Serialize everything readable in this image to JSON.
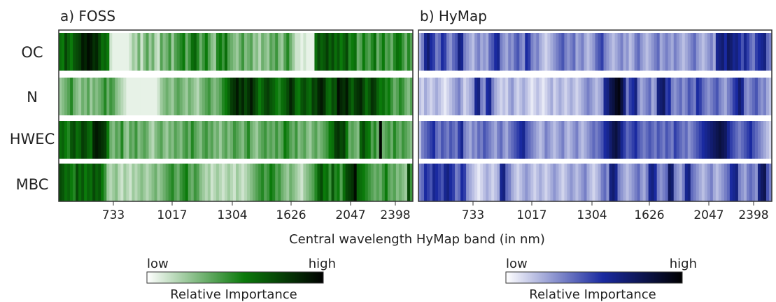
{
  "xlabel": "Central wavelength HyMap band (in nm)",
  "row_labels": [
    "OC",
    "N",
    "HWEC",
    "MBC"
  ],
  "x_ticks": [
    "733",
    "1017",
    "1304",
    "1626",
    "2047",
    "2398"
  ],
  "legend": {
    "low": "low",
    "high": "high",
    "label": "Relative Importance"
  },
  "colors": {
    "foss_high": "#0d4f0d",
    "hymap_high": "#0a0a3a",
    "low": "#ffffff",
    "frame": "#333333"
  },
  "chart_data": [
    {
      "type": "heatmap",
      "title": "a) FOSS",
      "rows": [
        "OC",
        "N",
        "HWEC",
        "MBC"
      ],
      "x_ticks": [
        "733",
        "1017",
        "1304",
        "1626",
        "2047",
        "2398"
      ],
      "xlabel": "Central wavelength HyMap band (in nm)",
      "colorscale": [
        "#ffffff",
        "#0b7a0b",
        "#000000"
      ],
      "n_bands": 126,
      "values": [
        [
          0.55,
          0.5,
          0.72,
          0.6,
          0.5,
          0.65,
          0.7,
          0.75,
          0.9,
          0.85,
          0.95,
          0.9,
          0.8,
          0.85,
          0.7,
          0.55,
          0.6,
          0.5,
          0.1,
          0.05,
          0.05,
          0.05,
          0.05,
          0.05,
          0.05,
          0.1,
          0.2,
          0.15,
          0.3,
          0.1,
          0.25,
          0.35,
          0.2,
          0.3,
          0.15,
          0.1,
          0.35,
          0.25,
          0.3,
          0.4,
          0.2,
          0.35,
          0.4,
          0.45,
          0.5,
          0.3,
          0.4,
          0.55,
          0.6,
          0.45,
          0.3,
          0.4,
          0.5,
          0.35,
          0.25,
          0.2,
          0.45,
          0.5,
          0.4,
          0.55,
          0.35,
          0.3,
          0.25,
          0.2,
          0.3,
          0.4,
          0.25,
          0.3,
          0.35,
          0.2,
          0.25,
          0.15,
          0.3,
          0.25,
          0.2,
          0.35,
          0.3,
          0.4,
          0.25,
          0.2,
          0.35,
          0.45,
          0.3,
          0.2,
          0.1,
          0.1,
          0.05,
          0.1,
          0.05,
          0.05,
          0.05,
          0.55,
          0.7,
          0.6,
          0.65,
          0.75,
          0.6,
          0.7,
          0.55,
          0.65,
          0.5,
          0.6,
          0.7,
          0.45,
          0.5,
          0.55,
          0.3,
          0.35,
          0.5,
          0.4,
          0.35,
          0.45,
          0.55,
          0.3,
          0.4,
          0.5,
          0.35,
          0.4,
          0.3,
          0.45,
          0.55,
          0.5,
          0.4,
          0.3,
          0.45,
          0.35
        ],
        [
          0.2,
          0.25,
          0.3,
          0.35,
          0.45,
          0.3,
          0.25,
          0.2,
          0.3,
          0.25,
          0.35,
          0.2,
          0.3,
          0.25,
          0.3,
          0.35,
          0.45,
          0.3,
          0.4,
          0.35,
          0.25,
          0.2,
          0.15,
          0.1,
          0.05,
          0.05,
          0.05,
          0.05,
          0.05,
          0.05,
          0.05,
          0.05,
          0.05,
          0.05,
          0.05,
          0.1,
          0.2,
          0.25,
          0.3,
          0.25,
          0.2,
          0.3,
          0.35,
          0.3,
          0.25,
          0.2,
          0.3,
          0.25,
          0.2,
          0.15,
          0.25,
          0.3,
          0.35,
          0.4,
          0.3,
          0.25,
          0.3,
          0.35,
          0.45,
          0.5,
          0.6,
          0.75,
          0.8,
          0.9,
          0.75,
          0.85,
          0.7,
          0.8,
          0.9,
          0.75,
          0.65,
          0.5,
          0.6,
          0.7,
          0.75,
          0.65,
          0.6,
          0.5,
          0.45,
          0.55,
          0.6,
          0.7,
          0.85,
          0.75,
          0.55,
          0.5,
          0.65,
          0.7,
          0.6,
          0.55,
          0.75,
          0.7,
          0.85,
          0.9,
          0.8,
          0.6,
          0.55,
          0.7,
          0.65,
          0.95,
          0.85,
          0.8,
          0.9,
          0.7,
          0.6,
          0.75,
          0.8,
          0.85,
          0.7,
          0.55,
          0.65,
          0.8,
          0.75,
          0.6,
          0.5,
          0.55,
          0.45,
          0.5,
          0.4,
          0.3,
          0.35,
          0.45,
          0.4,
          0.3,
          0.25,
          0.35
        ],
        [
          0.55,
          0.6,
          0.5,
          0.45,
          0.65,
          0.7,
          0.55,
          0.6,
          0.75,
          0.7,
          0.6,
          0.55,
          0.85,
          0.9,
          0.85,
          0.8,
          0.75,
          0.5,
          0.3,
          0.25,
          0.35,
          0.3,
          0.45,
          0.25,
          0.2,
          0.35,
          0.3,
          0.4,
          0.25,
          0.3,
          0.35,
          0.3,
          0.2,
          0.15,
          0.25,
          0.3,
          0.35,
          0.25,
          0.2,
          0.3,
          0.25,
          0.35,
          0.3,
          0.25,
          0.35,
          0.4,
          0.3,
          0.45,
          0.35,
          0.3,
          0.25,
          0.35,
          0.4,
          0.3,
          0.35,
          0.25,
          0.3,
          0.2,
          0.3,
          0.35,
          0.25,
          0.3,
          0.4,
          0.35,
          0.3,
          0.25,
          0.35,
          0.45,
          0.3,
          0.25,
          0.2,
          0.3,
          0.35,
          0.4,
          0.3,
          0.35,
          0.3,
          0.4,
          0.3,
          0.35,
          0.5,
          0.45,
          0.35,
          0.3,
          0.4,
          0.25,
          0.3,
          0.35,
          0.25,
          0.2,
          0.3,
          0.35,
          0.25,
          0.3,
          0.35,
          0.4,
          0.5,
          0.55,
          0.75,
          0.8,
          0.7,
          0.75,
          0.5,
          0.3,
          0.35,
          0.3,
          0.25,
          0.6,
          0.7,
          0.55,
          0.5,
          0.35,
          0.45,
          0.3,
          0.98,
          0.3,
          0.35,
          0.4,
          0.3,
          0.45,
          0.35,
          0.3,
          0.4,
          0.35,
          0.3,
          0.25
        ],
        [
          0.7,
          0.65,
          0.55,
          0.6,
          0.5,
          0.45,
          0.7,
          0.55,
          0.65,
          0.5,
          0.6,
          0.55,
          0.7,
          0.6,
          0.65,
          0.5,
          0.4,
          0.2,
          0.15,
          0.2,
          0.25,
          0.15,
          0.1,
          0.2,
          0.15,
          0.1,
          0.2,
          0.15,
          0.2,
          0.25,
          0.2,
          0.15,
          0.2,
          0.25,
          0.3,
          0.2,
          0.25,
          0.3,
          0.35,
          0.4,
          0.45,
          0.35,
          0.3,
          0.4,
          0.45,
          0.5,
          0.35,
          0.3,
          0.4,
          0.35,
          0.25,
          0.2,
          0.15,
          0.2,
          0.1,
          0.15,
          0.2,
          0.15,
          0.1,
          0.15,
          0.2,
          0.15,
          0.1,
          0.2,
          0.15,
          0.1,
          0.15,
          0.2,
          0.25,
          0.3,
          0.35,
          0.4,
          0.45,
          0.35,
          0.4,
          0.5,
          0.45,
          0.35,
          0.4,
          0.3,
          0.25,
          0.2,
          0.3,
          0.25,
          0.2,
          0.15,
          0.1,
          0.2,
          0.25,
          0.3,
          0.35,
          0.45,
          0.6,
          0.7,
          0.5,
          0.55,
          0.4,
          0.65,
          0.45,
          0.5,
          0.35,
          0.55,
          0.7,
          0.75,
          0.8,
          0.95,
          0.6,
          0.55,
          0.5,
          0.45,
          0.4,
          0.35,
          0.3,
          0.35,
          0.3,
          0.4,
          0.5,
          0.35,
          0.3,
          0.35,
          0.25,
          0.3,
          0.25,
          0.2,
          0.7,
          0.4
        ]
      ]
    },
    {
      "type": "heatmap",
      "title": "b) HyMap",
      "rows": [
        "OC",
        "N",
        "HWEC",
        "MBC"
      ],
      "x_ticks": [
        "733",
        "1017",
        "1304",
        "1626",
        "2047",
        "2398"
      ],
      "xlabel": "Central wavelength HyMap band (in nm)",
      "colorscale": [
        "#ffffff",
        "#1a2aa0",
        "#000000"
      ],
      "n_bands": 126,
      "values": [
        [
          0.2,
          0.3,
          0.55,
          0.65,
          0.5,
          0.45,
          0.3,
          0.35,
          0.5,
          0.45,
          0.3,
          0.25,
          0.35,
          0.4,
          0.6,
          0.55,
          0.3,
          0.25,
          0.2,
          0.15,
          0.25,
          0.3,
          0.2,
          0.25,
          0.2,
          0.35,
          0.4,
          0.5,
          0.55,
          0.3,
          0.25,
          0.2,
          0.3,
          0.25,
          0.35,
          0.4,
          0.3,
          0.25,
          0.5,
          0.45,
          0.3,
          0.25,
          0.3,
          0.2,
          0.15,
          0.1,
          0.15,
          0.2,
          0.25,
          0.3,
          0.35,
          0.4,
          0.3,
          0.25,
          0.3,
          0.35,
          0.2,
          0.25,
          0.3,
          0.2,
          0.15,
          0.2,
          0.25,
          0.35,
          0.4,
          0.45,
          0.3,
          0.25,
          0.2,
          0.15,
          0.2,
          0.25,
          0.3,
          0.2,
          0.25,
          0.15,
          0.2,
          0.3,
          0.35,
          0.25,
          0.2,
          0.15,
          0.2,
          0.25,
          0.3,
          0.35,
          0.2,
          0.25,
          0.3,
          0.25,
          0.2,
          0.3,
          0.25,
          0.2,
          0.15,
          0.2,
          0.25,
          0.3,
          0.35,
          0.25,
          0.2,
          0.15,
          0.2,
          0.25,
          0.3,
          0.2,
          0.55,
          0.6,
          0.65,
          0.5,
          0.7,
          0.65,
          0.55,
          0.6,
          0.5,
          0.4,
          0.55,
          0.45,
          0.35,
          0.3,
          0.45,
          0.5,
          0.55,
          0.6,
          0.35,
          0.3
        ],
        [
          0.15,
          0.1,
          0.2,
          0.15,
          0.1,
          0.15,
          0.2,
          0.15,
          0.1,
          0.05,
          0.1,
          0.15,
          0.2,
          0.25,
          0.3,
          0.2,
          0.1,
          0.15,
          0.2,
          0.25,
          0.55,
          0.6,
          0.3,
          0.25,
          0.5,
          0.55,
          0.3,
          0.2,
          0.15,
          0.1,
          0.15,
          0.1,
          0.2,
          0.25,
          0.15,
          0.1,
          0.15,
          0.2,
          0.15,
          0.1,
          0.05,
          0.1,
          0.15,
          0.1,
          0.05,
          0.1,
          0.15,
          0.2,
          0.1,
          0.15,
          0.2,
          0.15,
          0.1,
          0.15,
          0.2,
          0.15,
          0.1,
          0.15,
          0.2,
          0.25,
          0.3,
          0.25,
          0.2,
          0.15,
          0.2,
          0.25,
          0.55,
          0.6,
          0.75,
          0.8,
          0.9,
          0.95,
          0.8,
          0.6,
          0.3,
          0.45,
          0.5,
          0.6,
          0.3,
          0.2,
          0.25,
          0.3,
          0.35,
          0.2,
          0.25,
          0.6,
          0.65,
          0.7,
          0.45,
          0.5,
          0.3,
          0.25,
          0.3,
          0.35,
          0.25,
          0.3,
          0.4,
          0.35,
          0.3,
          0.5,
          0.45,
          0.35,
          0.3,
          0.25,
          0.3,
          0.35,
          0.4,
          0.3,
          0.25,
          0.2,
          0.3,
          0.35,
          0.45,
          0.5,
          0.65,
          0.55,
          0.3,
          0.25,
          0.3,
          0.35,
          0.4,
          0.3,
          0.25,
          0.3,
          0.2,
          0.15
        ],
        [
          0.15,
          0.3,
          0.35,
          0.4,
          0.45,
          0.5,
          0.35,
          0.3,
          0.4,
          0.35,
          0.3,
          0.4,
          0.35,
          0.3,
          0.45,
          0.55,
          0.3,
          0.25,
          0.2,
          0.3,
          0.25,
          0.35,
          0.3,
          0.4,
          0.35,
          0.3,
          0.25,
          0.2,
          0.3,
          0.35,
          0.25,
          0.2,
          0.3,
          0.35,
          0.4,
          0.45,
          0.5,
          0.55,
          0.4,
          0.35,
          0.3,
          0.25,
          0.2,
          0.15,
          0.2,
          0.3,
          0.25,
          0.2,
          0.15,
          0.2,
          0.25,
          0.3,
          0.2,
          0.15,
          0.2,
          0.25,
          0.3,
          0.2,
          0.15,
          0.2,
          0.25,
          0.3,
          0.35,
          0.3,
          0.35,
          0.4,
          0.5,
          0.55,
          0.65,
          0.75,
          0.8,
          0.7,
          0.55,
          0.45,
          0.35,
          0.4,
          0.45,
          0.5,
          0.4,
          0.35,
          0.3,
          0.35,
          0.4,
          0.35,
          0.3,
          0.4,
          0.35,
          0.3,
          0.4,
          0.35,
          0.3,
          0.45,
          0.4,
          0.35,
          0.3,
          0.35,
          0.25,
          0.3,
          0.35,
          0.4,
          0.45,
          0.5,
          0.55,
          0.6,
          0.65,
          0.7,
          0.75,
          0.8,
          0.75,
          0.7,
          0.55,
          0.45,
          0.4,
          0.35,
          0.3,
          0.35,
          0.4,
          0.45,
          0.5,
          0.4,
          0.35,
          0.3,
          0.25,
          0.2,
          0.15,
          0.1
        ],
        [
          0.3,
          0.35,
          0.5,
          0.45,
          0.4,
          0.55,
          0.5,
          0.45,
          0.4,
          0.55,
          0.6,
          0.5,
          0.45,
          0.3,
          0.35,
          0.5,
          0.45,
          0.25,
          0.2,
          0.15,
          0.1,
          0.05,
          0.1,
          0.15,
          0.2,
          0.15,
          0.1,
          0.15,
          0.2,
          0.55,
          0.6,
          0.35,
          0.3,
          0.2,
          0.15,
          0.1,
          0.15,
          0.2,
          0.25,
          0.2,
          0.15,
          0.1,
          0.15,
          0.2,
          0.15,
          0.1,
          0.15,
          0.2,
          0.25,
          0.2,
          0.15,
          0.1,
          0.15,
          0.2,
          0.25,
          0.2,
          0.15,
          0.2,
          0.25,
          0.3,
          0.2,
          0.15,
          0.1,
          0.15,
          0.2,
          0.3,
          0.35,
          0.25,
          0.6,
          0.65,
          0.55,
          0.3,
          0.25,
          0.2,
          0.15,
          0.2,
          0.25,
          0.3,
          0.35,
          0.25,
          0.2,
          0.3,
          0.55,
          0.6,
          0.5,
          0.3,
          0.25,
          0.3,
          0.35,
          0.7,
          0.65,
          0.3,
          0.25,
          0.2,
          0.3,
          0.55,
          0.6,
          0.35,
          0.3,
          0.25,
          0.2,
          0.15,
          0.2,
          0.25,
          0.3,
          0.2,
          0.15,
          0.2,
          0.25,
          0.3,
          0.35,
          0.5,
          0.55,
          0.6,
          0.3,
          0.25,
          0.2,
          0.3,
          0.35,
          0.3,
          0.25,
          0.6,
          0.7,
          0.75,
          0.4,
          0.3
        ]
      ]
    }
  ]
}
